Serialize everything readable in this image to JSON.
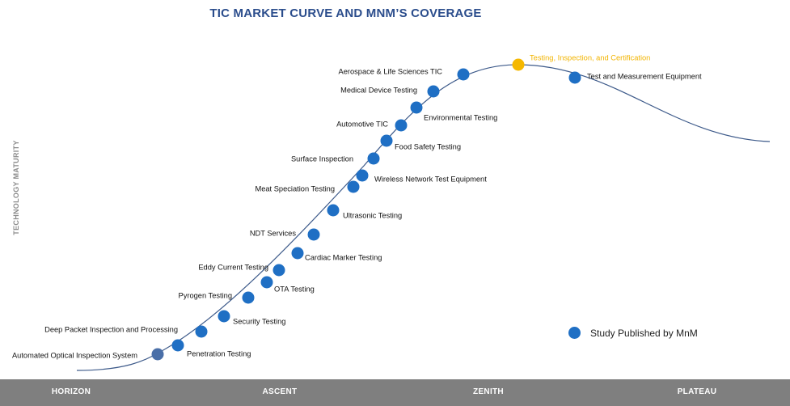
{
  "title": "TIC MARKET CURVE AND MNM’S COVERAGE",
  "y_axis_label": "TECHNOLOGY MATURITY",
  "legend_label": "Study Published by MnM",
  "stages": [
    "HORIZON",
    "ASCENT",
    "ZENITH",
    "PLATEAU"
  ],
  "points": [
    {
      "label": "Automated Optical Inspection System",
      "color": "#4a6fa8"
    },
    {
      "label": "Penetration Testing",
      "color": "#1f6fc4"
    },
    {
      "label": "Deep Packet Inspection and Processing",
      "color": "#1f6fc4"
    },
    {
      "label": "Security Testing",
      "color": "#1f6fc4"
    },
    {
      "label": "Pyrogen Testing",
      "color": "#1f6fc4"
    },
    {
      "label": "OTA Testing",
      "color": "#1f6fc4"
    },
    {
      "label": "Eddy Current Testing",
      "color": "#1f6fc4"
    },
    {
      "label": "Cardiac Marker Testing",
      "color": "#1f6fc4"
    },
    {
      "label": "NDT Services",
      "color": "#1f6fc4"
    },
    {
      "label": "Ultrasonic Testing",
      "color": "#1f6fc4"
    },
    {
      "label": "Meat Speciation Testing",
      "color": "#1f6fc4"
    },
    {
      "label": "Wireless Network Test Equipment",
      "color": "#1f6fc4"
    },
    {
      "label": "Surface Inspection",
      "color": "#1f6fc4"
    },
    {
      "label": "Food Safety Testing",
      "color": "#1f6fc4"
    },
    {
      "label": "Automotive TIC",
      "color": "#1f6fc4"
    },
    {
      "label": "Environmental Testing",
      "color": "#1f6fc4"
    },
    {
      "label": "Medical Device Testing",
      "color": "#1f6fc4"
    },
    {
      "label": "Aerospace & Life Sciences TIC",
      "color": "#1f6fc4"
    },
    {
      "label": "Testing, Inspection, and Certification",
      "color": "#f5b800",
      "highlight": true
    },
    {
      "label": "Test and Measurement Equipment",
      "color": "#1f6fc4"
    }
  ]
}
